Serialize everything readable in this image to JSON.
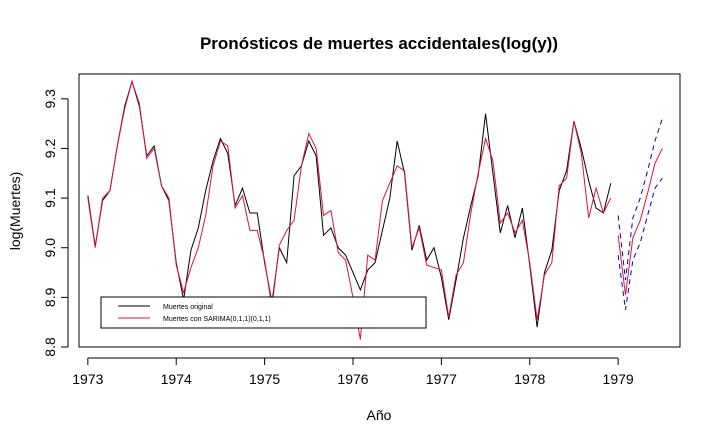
{
  "chart_data": {
    "type": "line",
    "title": "Pronósticos de muertes accidentales(log(y))",
    "xlabel": "Año",
    "ylabel": "log(Muertes)",
    "xlim": [
      1972.9,
      1979.7
    ],
    "ylim": [
      8.8,
      9.35
    ],
    "xticks": [
      1973,
      1974,
      1975,
      1976,
      1977,
      1978,
      1979
    ],
    "xtick_labels": [
      "1973",
      "1974",
      "1975",
      "1976",
      "1977",
      "1978",
      "1979"
    ],
    "yticks": [
      8.8,
      8.9,
      9.0,
      9.1,
      9.2,
      9.3
    ],
    "ytick_labels": [
      "8.8",
      "8.9",
      "9.0",
      "9.1",
      "9.2",
      "9.3"
    ],
    "grid": false,
    "legend_position": "bottom-left",
    "x_start": 1973,
    "x_step": 0.0833333,
    "series": [
      {
        "name": "Muertes original",
        "color": "#000000",
        "values": [
          9.105,
          9.003,
          9.095,
          9.115,
          9.205,
          9.285,
          9.335,
          9.285,
          9.185,
          9.205,
          9.125,
          9.095,
          8.97,
          8.895,
          8.995,
          9.04,
          9.115,
          9.175,
          9.22,
          9.19,
          9.085,
          9.12,
          9.07,
          9.07,
          8.97,
          8.89,
          9.0,
          8.97,
          9.145,
          9.165,
          9.215,
          9.185,
          9.025,
          9.04,
          9.0,
          8.985,
          8.95,
          8.915,
          8.955,
          8.97,
          9.035,
          9.1,
          9.215,
          9.15,
          8.995,
          9.045,
          8.975,
          9.0,
          8.94,
          8.855,
          8.935,
          9.02,
          9.085,
          9.145,
          9.27,
          9.15,
          9.03,
          9.085,
          9.02,
          9.08,
          8.965,
          8.84,
          8.95,
          8.995,
          9.115,
          9.155,
          9.255,
          9.2,
          9.135,
          9.08,
          9.07,
          9.13
        ]
      },
      {
        "name": "Muertes con SARIMA(0,1,1)(0,1,1)",
        "color": "#dc143c",
        "values": [
          9.1,
          9.0,
          9.1,
          9.115,
          9.205,
          9.28,
          9.335,
          9.29,
          9.18,
          9.2,
          9.125,
          9.1,
          8.965,
          8.91,
          8.96,
          9.0,
          9.065,
          9.165,
          9.215,
          9.205,
          9.08,
          9.105,
          9.035,
          9.035,
          8.975,
          8.88,
          9.005,
          9.035,
          9.055,
          9.165,
          9.23,
          9.2,
          9.065,
          9.075,
          8.99,
          8.975,
          8.9,
          8.815,
          8.985,
          8.975,
          9.095,
          9.13,
          9.165,
          9.155,
          9.0,
          9.04,
          8.965,
          8.96,
          8.955,
          8.86,
          8.945,
          8.97,
          9.07,
          9.15,
          9.22,
          9.175,
          9.05,
          9.07,
          9.03,
          9.055,
          8.97,
          8.855,
          8.945,
          8.97,
          9.125,
          9.14,
          9.255,
          9.19,
          9.06,
          9.12,
          9.07,
          9.1
        ]
      },
      {
        "name": "",
        "color": "#dc143c",
        "x_start": 1979,
        "values": [
          9.025,
          8.905,
          9.02,
          9.055,
          9.11,
          9.17,
          9.2
        ]
      },
      {
        "name": "",
        "color": "#0000cd",
        "dashed": true,
        "x_start": 1979,
        "values": [
          9.065,
          8.935,
          9.06,
          9.1,
          9.155,
          9.215,
          9.26
        ]
      },
      {
        "name": "",
        "color": "#0000cd",
        "dashed": true,
        "x_start": 1979,
        "values": [
          8.985,
          8.875,
          8.975,
          9.01,
          9.065,
          9.12,
          9.14
        ]
      }
    ],
    "legend": [
      {
        "label": "Muertes original",
        "color": "#000000"
      },
      {
        "label": "Muertes con SARIMA(0,1,1)(0,1,1)",
        "color": "#dc143c"
      }
    ]
  }
}
